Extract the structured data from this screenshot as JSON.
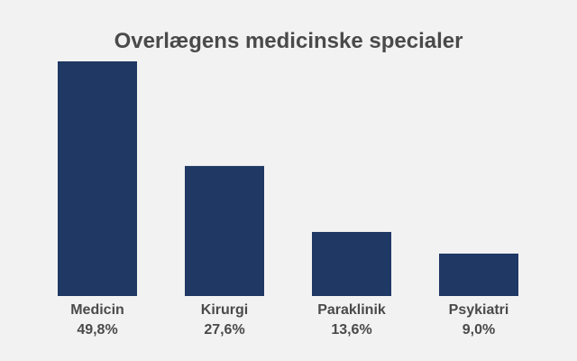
{
  "chart_data": {
    "type": "bar",
    "title": "Overlægens medicinske specialer",
    "xlabel": "",
    "ylabel": "",
    "categories": [
      "Medicin",
      "Kirurgi",
      "Paraklinik",
      "Psykiatri"
    ],
    "values": [
      49.8,
      27.6,
      13.6,
      9.0
    ],
    "value_labels": [
      "49,8%",
      "27,6%",
      "13,6%",
      "9,0%"
    ],
    "ylim": [
      0,
      49.8
    ],
    "grid": false,
    "legend": "none",
    "colors": {
      "bar": "#1f3864",
      "text": "#4a4a4a",
      "background": "#f2f2f2"
    }
  }
}
